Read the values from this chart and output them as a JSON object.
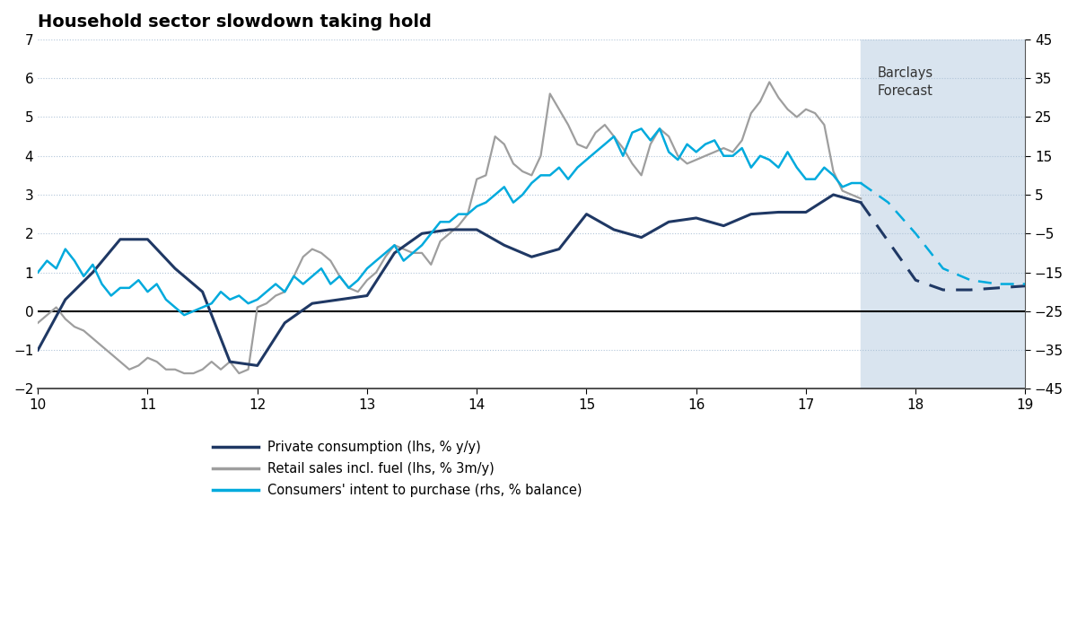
{
  "title": "Household sector slowdown taking hold",
  "forecast_label": "Barclays\nForecast",
  "forecast_start": 17.5,
  "xlim": [
    10,
    19
  ],
  "ylim_lhs": [
    -2,
    7
  ],
  "ylim_rhs": [
    -45,
    45
  ],
  "yticks_lhs": [
    -2,
    -1,
    0,
    1,
    2,
    3,
    4,
    5,
    6,
    7
  ],
  "yticks_rhs": [
    -45,
    -35,
    -25,
    -15,
    -5,
    5,
    15,
    25,
    35,
    45
  ],
  "xticks": [
    10,
    11,
    12,
    13,
    14,
    15,
    16,
    17,
    18,
    19
  ],
  "background_color": "#ffffff",
  "forecast_bg_color": "#d9e4ef",
  "grid_color": "#b0c4d8",
  "zero_line_color": "#000000",
  "private_consumption_color": "#1f3864",
  "retail_sales_color": "#9e9e9e",
  "consumers_intent_color": "#00aadd",
  "private_consumption_x": [
    10.0,
    10.25,
    10.5,
    10.75,
    11.0,
    11.25,
    11.5,
    11.75,
    12.0,
    12.25,
    12.5,
    12.75,
    13.0,
    13.25,
    13.5,
    13.75,
    14.0,
    14.25,
    14.5,
    14.75,
    15.0,
    15.25,
    15.5,
    15.75,
    16.0,
    16.25,
    16.5,
    16.75,
    17.0,
    17.25,
    17.5
  ],
  "private_consumption_y": [
    -1.0,
    0.3,
    1.0,
    1.85,
    1.85,
    1.1,
    0.5,
    -1.3,
    -1.4,
    -0.3,
    0.2,
    0.3,
    0.4,
    1.5,
    2.0,
    2.1,
    2.1,
    1.7,
    1.4,
    1.6,
    2.5,
    2.1,
    1.9,
    2.3,
    2.4,
    2.2,
    2.5,
    2.55,
    2.55,
    3.0,
    2.8
  ],
  "retail_sales_x": [
    10.0,
    10.083,
    10.167,
    10.25,
    10.333,
    10.417,
    10.5,
    10.583,
    10.667,
    10.75,
    10.833,
    10.917,
    11.0,
    11.083,
    11.167,
    11.25,
    11.333,
    11.417,
    11.5,
    11.583,
    11.667,
    11.75,
    11.833,
    11.917,
    12.0,
    12.083,
    12.167,
    12.25,
    12.333,
    12.417,
    12.5,
    12.583,
    12.667,
    12.75,
    12.833,
    12.917,
    13.0,
    13.083,
    13.167,
    13.25,
    13.333,
    13.417,
    13.5,
    13.583,
    13.667,
    13.75,
    13.833,
    13.917,
    14.0,
    14.083,
    14.167,
    14.25,
    14.333,
    14.417,
    14.5,
    14.583,
    14.667,
    14.75,
    14.833,
    14.917,
    15.0,
    15.083,
    15.167,
    15.25,
    15.333,
    15.417,
    15.5,
    15.583,
    15.667,
    15.75,
    15.833,
    15.917,
    16.0,
    16.083,
    16.167,
    16.25,
    16.333,
    16.417,
    16.5,
    16.583,
    16.667,
    16.75,
    16.833,
    16.917,
    17.0,
    17.083,
    17.167,
    17.25,
    17.333,
    17.417,
    17.5
  ],
  "retail_sales_y": [
    -0.3,
    -0.1,
    0.1,
    -0.2,
    -0.4,
    -0.5,
    -0.7,
    -0.9,
    -1.1,
    -1.3,
    -1.5,
    -1.4,
    -1.2,
    -1.3,
    -1.5,
    -1.5,
    -1.6,
    -1.6,
    -1.5,
    -1.3,
    -1.5,
    -1.3,
    -1.6,
    -1.5,
    0.1,
    0.2,
    0.4,
    0.5,
    0.9,
    1.4,
    1.6,
    1.5,
    1.3,
    0.9,
    0.6,
    0.5,
    0.8,
    1.0,
    1.4,
    1.7,
    1.6,
    1.5,
    1.5,
    1.2,
    1.8,
    2.0,
    2.2,
    2.5,
    3.4,
    3.5,
    4.5,
    4.3,
    3.8,
    3.6,
    3.5,
    4.0,
    5.6,
    5.2,
    4.8,
    4.3,
    4.2,
    4.6,
    4.8,
    4.5,
    4.2,
    3.8,
    3.5,
    4.3,
    4.7,
    4.5,
    4.0,
    3.8,
    3.9,
    4.0,
    4.1,
    4.2,
    4.1,
    4.4,
    5.1,
    5.4,
    5.9,
    5.5,
    5.2,
    5.0,
    5.2,
    5.1,
    4.8,
    3.6,
    3.1,
    3.0,
    2.9
  ],
  "consumers_intent_x": [
    10.0,
    10.083,
    10.167,
    10.25,
    10.333,
    10.417,
    10.5,
    10.583,
    10.667,
    10.75,
    10.833,
    10.917,
    11.0,
    11.083,
    11.167,
    11.25,
    11.333,
    11.417,
    11.5,
    11.583,
    11.667,
    11.75,
    11.833,
    11.917,
    12.0,
    12.083,
    12.167,
    12.25,
    12.333,
    12.417,
    12.5,
    12.583,
    12.667,
    12.75,
    12.833,
    12.917,
    13.0,
    13.083,
    13.167,
    13.25,
    13.333,
    13.417,
    13.5,
    13.583,
    13.667,
    13.75,
    13.833,
    13.917,
    14.0,
    14.083,
    14.167,
    14.25,
    14.333,
    14.417,
    14.5,
    14.583,
    14.667,
    14.75,
    14.833,
    14.917,
    15.0,
    15.083,
    15.167,
    15.25,
    15.333,
    15.417,
    15.5,
    15.583,
    15.667,
    15.75,
    15.833,
    15.917,
    16.0,
    16.083,
    16.167,
    16.25,
    16.333,
    16.417,
    16.5,
    16.583,
    16.667,
    16.75,
    16.833,
    16.917,
    17.0,
    17.083,
    17.167,
    17.25,
    17.333,
    17.417,
    17.5
  ],
  "consumers_intent_y_rhs": [
    -15,
    -12,
    -14,
    -9,
    -12,
    -16,
    -13,
    -18,
    -21,
    -19,
    -19,
    -17,
    -20,
    -18,
    -22,
    -24,
    -26,
    -25,
    -24,
    -23,
    -20,
    -22,
    -21,
    -23,
    -22,
    -20,
    -18,
    -20,
    -16,
    -18,
    -16,
    -14,
    -18,
    -16,
    -19,
    -17,
    -14,
    -12,
    -10,
    -8,
    -12,
    -10,
    -8,
    -5,
    -2,
    -2,
    0,
    0,
    2,
    3,
    5,
    7,
    3,
    5,
    8,
    10,
    10,
    12,
    9,
    12,
    14,
    16,
    18,
    20,
    15,
    21,
    22,
    19,
    22,
    16,
    14,
    18,
    16,
    18,
    19,
    15,
    15,
    17,
    12,
    15,
    14,
    12,
    16,
    12,
    9,
    9,
    12,
    10,
    7,
    8,
    8
  ],
  "forecast_private_x": [
    17.5,
    17.75,
    18.0,
    18.25,
    18.5,
    18.75,
    19.0
  ],
  "forecast_private_y": [
    2.8,
    1.8,
    0.8,
    0.55,
    0.55,
    0.6,
    0.65
  ],
  "forecast_consumers_x": [
    17.5,
    17.75,
    18.0,
    18.25,
    18.5,
    18.75,
    19.0
  ],
  "forecast_consumers_y_rhs": [
    8,
    3,
    -5,
    -14,
    -17,
    -18,
    -18
  ],
  "legend_entries": [
    {
      "label": "Private consumption (lhs, % y/y)",
      "color": "#1f3864",
      "linestyle": "solid"
    },
    {
      "label": "Retail sales incl. fuel (lhs, % 3m/y)",
      "color": "#9e9e9e",
      "linestyle": "solid"
    },
    {
      "label": "Consumers' intent to purchase (rhs, % balance)",
      "color": "#00aadd",
      "linestyle": "solid"
    }
  ]
}
